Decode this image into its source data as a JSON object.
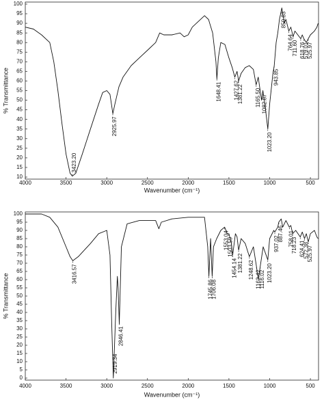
{
  "chart_data": [
    {
      "type": "line",
      "x_label": "Wavenumber (cm⁻¹)",
      "y_label": "% Transmittance",
      "xlim": [
        4000,
        400
      ],
      "ylim": [
        10,
        100
      ],
      "xticks": [
        4000,
        3500,
        3000,
        2500,
        2000,
        1500,
        1000,
        500
      ],
      "yticks": [
        10,
        15,
        20,
        25,
        30,
        35,
        40,
        45,
        50,
        55,
        60,
        65,
        70,
        75,
        80,
        85,
        90,
        95,
        100
      ],
      "series": [
        {
          "color": "#111111",
          "x": [
            4000,
            3900,
            3800,
            3700,
            3650,
            3600,
            3550,
            3500,
            3450,
            3423,
            3380,
            3300,
            3200,
            3100,
            3050,
            3000,
            2960,
            2925,
            2900,
            2850,
            2800,
            2700,
            2600,
            2500,
            2400,
            2350,
            2300,
            2200,
            2100,
            2050,
            2000,
            1950,
            1900,
            1800,
            1750,
            1700,
            1660,
            1648,
            1630,
            1600,
            1550,
            1500,
            1460,
            1428,
            1400,
            1381,
            1350,
            1300,
            1250,
            1200,
            1166,
            1140,
            1100,
            1083,
            1050,
            1023,
            1000,
            960,
            944,
            920,
            900,
            880,
            851,
            820,
            800,
            765,
            740,
            712,
            690,
            618,
            600,
            580,
            550,
            526,
            500,
            450,
            420,
            405
          ],
          "values": [
            88,
            87,
            84,
            80,
            70,
            55,
            38,
            22,
            12,
            10.5,
            12,
            22,
            35,
            48,
            54,
            55,
            53,
            43,
            48,
            57,
            62,
            68,
            72,
            76,
            80,
            85,
            84,
            84,
            85,
            83,
            84,
            88,
            90,
            94,
            92,
            85,
            70,
            61,
            72,
            80,
            79,
            72,
            67,
            62,
            65,
            60,
            64,
            67,
            68,
            66,
            58,
            62,
            50,
            55,
            45,
            35,
            48,
            64,
            68,
            80,
            85,
            92,
            98,
            90,
            92,
            86,
            88,
            83,
            86,
            82,
            84,
            82,
            80,
            82,
            84,
            86,
            88,
            90
          ]
        }
      ],
      "peaks": [
        {
          "value": 3423.2,
          "label": "3423.20"
        },
        {
          "value": 2925.97,
          "label": "2925.97"
        },
        {
          "value": 1648.41,
          "label": "1648.41"
        },
        {
          "value": 1427.62,
          "label": "1427.62"
        },
        {
          "value": 1381.22,
          "label": "1381.22"
        },
        {
          "value": 1165.5,
          "label": "1165.50"
        },
        {
          "value": 1082.87,
          "label": "1082.87"
        },
        {
          "value": 1023.2,
          "label": "1023.20"
        },
        {
          "value": 943.85,
          "label": "943.85"
        },
        {
          "value": 850.83,
          "label": "850.83"
        },
        {
          "value": 764.64,
          "label": "764.64"
        },
        {
          "value": 711.6,
          "label": "711.60"
        },
        {
          "value": 618.76,
          "label": "618.76"
        },
        {
          "value": 579.01,
          "label": "579.01"
        },
        {
          "value": 525.97,
          "label": "525.97"
        }
      ]
    },
    {
      "type": "line",
      "x_label": "Wavenumber (cm⁻¹)",
      "y_label": "% Transmittance",
      "xlim": [
        4000,
        400
      ],
      "ylim": [
        0,
        100
      ],
      "xticks": [
        4000,
        3500,
        3000,
        2500,
        2000,
        1500,
        1000,
        500
      ],
      "yticks": [
        0,
        5,
        10,
        15,
        20,
        25,
        30,
        35,
        40,
        45,
        50,
        55,
        60,
        65,
        70,
        75,
        80,
        85,
        90,
        95,
        100
      ],
      "series": [
        {
          "color": "#111111",
          "x": [
            4000,
            3800,
            3700,
            3600,
            3500,
            3450,
            3417,
            3350,
            3200,
            3100,
            3000,
            2960,
            2940,
            2919,
            2890,
            2870,
            2860,
            2846,
            2820,
            2750,
            2600,
            2400,
            2360,
            2330,
            2200,
            2000,
            1800,
            1760,
            1746,
            1725,
            1706,
            1690,
            1650,
            1600,
            1553,
            1520,
            1500,
            1470,
            1454,
            1420,
            1400,
            1381,
            1350,
            1300,
            1249,
            1200,
            1162,
            1140,
            1116,
            1080,
            1023,
            1000,
            950,
            937,
            900,
            888,
            858,
            840,
            800,
            759,
            740,
            718,
            680,
            624,
            600,
            572,
            550,
            526,
            500,
            450,
            420,
            405
          ],
          "values": [
            100,
            100,
            98,
            92,
            80,
            74,
            71.5,
            74,
            82,
            88,
            90,
            75,
            35,
            0,
            40,
            62,
            55,
            33,
            80,
            94,
            96,
            96,
            91,
            95,
            97,
            98,
            98,
            80,
            62,
            85,
            62,
            80,
            85,
            90,
            92,
            88,
            88,
            82,
            75,
            88,
            86,
            78,
            85,
            82,
            74,
            80,
            68,
            60,
            68,
            80,
            72,
            85,
            90,
            89,
            92,
            95,
            97,
            92,
            96,
            92,
            93,
            88,
            90,
            86,
            89,
            85,
            88,
            83,
            88,
            90,
            86,
            85
          ]
        }
      ],
      "peaks": [
        {
          "value": 3416.57,
          "label": "3416.57"
        },
        {
          "value": 2919.34,
          "label": "2919.34"
        },
        {
          "value": 2846.41,
          "label": "2846.41"
        },
        {
          "value": 1745.86,
          "label": "1745.86"
        },
        {
          "value": 1706.08,
          "label": "1706.08"
        },
        {
          "value": 1553.04,
          "label": "1553.04"
        },
        {
          "value": 1503.59,
          "label": "1503.59"
        },
        {
          "value": 1454.14,
          "label": "1454.14"
        },
        {
          "value": 1381.22,
          "label": "1381.22"
        },
        {
          "value": 1248.62,
          "label": "1248.62"
        },
        {
          "value": 1162.42,
          "label": "1162.42"
        },
        {
          "value": 1116.02,
          "label": "1116.02"
        },
        {
          "value": 1023.2,
          "label": "1023.20"
        },
        {
          "value": 937.02,
          "label": "937.02"
        },
        {
          "value": 887.46,
          "label": "887.46"
        },
        {
          "value": 758.01,
          "label": "758.01"
        },
        {
          "value": 718.23,
          "label": "718.23"
        },
        {
          "value": 624.41,
          "label": "624.41"
        },
        {
          "value": 572.38,
          "label": "572.38"
        },
        {
          "value": 525.97,
          "label": "525.97"
        }
      ]
    }
  ]
}
